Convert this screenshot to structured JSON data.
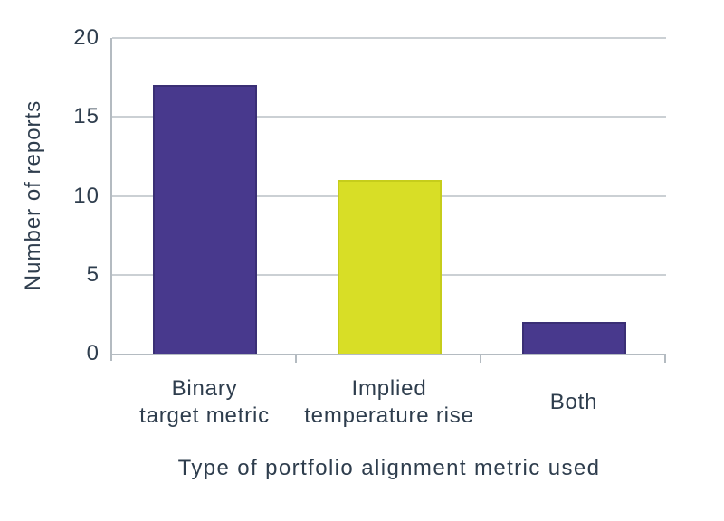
{
  "chart_data": {
    "type": "bar",
    "title": "",
    "categories": [
      "Binary target metric",
      "Implied temperature rise",
      "Both"
    ],
    "category_label_lines": [
      [
        "Binary",
        "target metric"
      ],
      [
        "Implied",
        "temperature rise"
      ],
      [
        "Both"
      ]
    ],
    "values": [
      17,
      11,
      2
    ],
    "series_name": "Number of reports",
    "xlabel": "Type of portfolio alignment metric used",
    "ylabel": "Number of reports",
    "ylim": [
      0,
      20
    ],
    "yticks": [
      0,
      5,
      10,
      15,
      20
    ],
    "ytick_labels": [
      "0",
      "5",
      "10",
      "15",
      "20"
    ],
    "grid": "horizontal gridlines at 5, 10, 15, 20",
    "legend_position": "none",
    "bar_colors": [
      "#48398d",
      "#d8de26",
      "#48398d"
    ],
    "bar_border_colors": [
      "#3a2f75",
      "#c6cd1b",
      "#3a2f75"
    ]
  },
  "colors": {
    "background": "#ffffff",
    "text": "#2e3d4d",
    "gridline": "#cbd0d4",
    "axis_line": "#b4bbc1",
    "bar_purple": "#48398d",
    "bar_yellow": "#d8de26"
  }
}
